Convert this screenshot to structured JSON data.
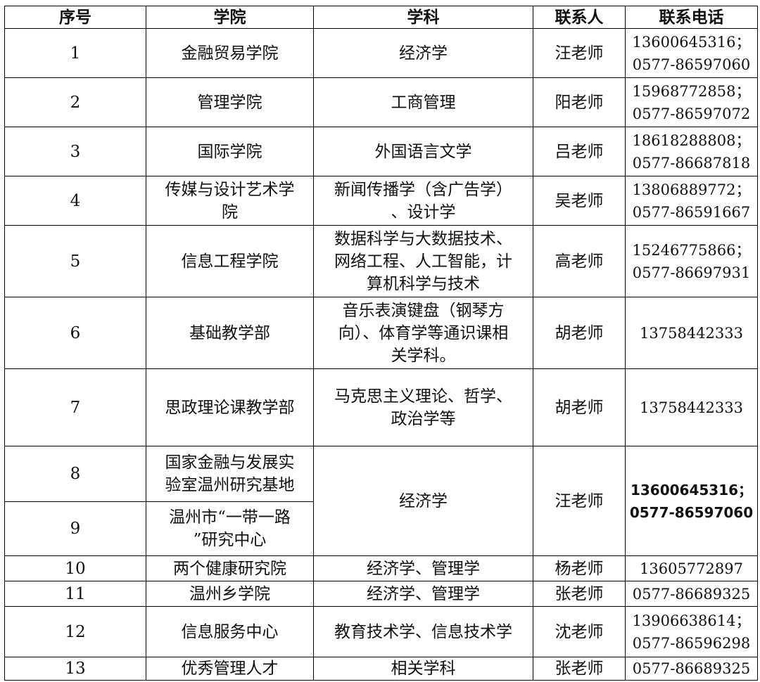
{
  "table": {
    "header": [
      "序号",
      "学院",
      "学科",
      "联系人",
      "联系电话"
    ],
    "rows": [
      {
        "no": "1",
        "college": [
          "金融贸易学院"
        ],
        "subject": [
          "经济学"
        ],
        "contact": "汪老师",
        "phone": [
          "13600645316；",
          "0577-86597060"
        ]
      },
      {
        "no": "2",
        "college": [
          "管理学院"
        ],
        "subject": [
          "工商管理"
        ],
        "contact": "阳老师",
        "phone": [
          "15968772858；",
          "0577-86597072"
        ]
      },
      {
        "no": "3",
        "college": [
          "国际学院"
        ],
        "subject": [
          "外国语言文学"
        ],
        "contact": "吕老师",
        "phone": [
          "18618288808；",
          "0577-86687818"
        ]
      },
      {
        "no": "4",
        "college": [
          "传媒与设计艺术学",
          "院"
        ],
        "subject": [
          "新闻传播学（含广告学）",
          "、设计学"
        ],
        "contact": "吴老师",
        "phone": [
          "13806889772；",
          "0577-86591667"
        ]
      },
      {
        "no": "5",
        "college": [
          "信息工程学院"
        ],
        "subject": [
          "数据科学与大数据技术、",
          "网络工程、人工智能，计",
          "算机科学与技术"
        ],
        "contact": "高老师",
        "phone": [
          "15246775866；",
          "0577-86697931"
        ]
      },
      {
        "no": "6",
        "college": [
          "基础教学部"
        ],
        "subject": [
          "音乐表演键盘（钢琴方",
          "向）、体育学等通识课相",
          "关学科。"
        ],
        "contact": "胡老师",
        "phone": [
          "13758442333"
        ]
      },
      {
        "no": "7",
        "college": [
          "思政理论课教学部"
        ],
        "subject": [
          "马克思主义理论、哲学、",
          "政治学等"
        ],
        "contact": "胡老师",
        "phone": [
          "13758442333"
        ]
      },
      {
        "no": "8",
        "college": [
          "国家金融与发展实",
          "验室温州研究基地"
        ],
        "subject": [
          "经济学"
        ],
        "contact": "汪老师",
        "phone": [
          "13600645316；",
          "0577-86597060"
        ]
      },
      {
        "no": "9",
        "college": [
          "温州市“一带一路",
          "”研究中心"
        ]
      },
      {
        "no": "10",
        "college": [
          "两个健康研究院"
        ],
        "subject": [
          "经济学、管理学"
        ],
        "contact": "杨老师",
        "phone": [
          "13605772897"
        ]
      },
      {
        "no": "11",
        "college": [
          "温州乡学院"
        ],
        "subject": [
          "经济学、管理学"
        ],
        "contact": "张老师",
        "phone": [
          "0577-86689325"
        ]
      },
      {
        "no": "12",
        "college": [
          "信息服务中心"
        ],
        "subject": [
          "教育技术学、信息技术学"
        ],
        "contact": "沈老师",
        "phone": [
          "13906638614；",
          "0577-86596298"
        ]
      },
      {
        "no": "13",
        "college": [
          "优秀管理人才"
        ],
        "subject": [
          "相关学科"
        ],
        "contact": "张老师",
        "phone": [
          "0577-86689325"
        ]
      }
    ]
  }
}
